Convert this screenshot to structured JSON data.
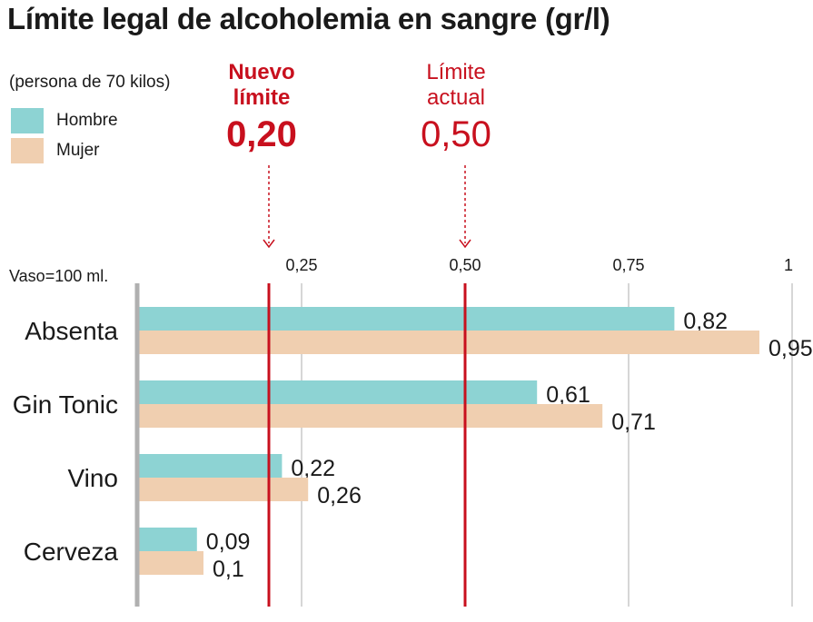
{
  "title": "Límite legal de alcoholemia en sangre (gr/l)",
  "subtitle": "(persona de 70 kilos)",
  "legend": [
    {
      "label": "Hombre",
      "color": "#8dd3d3"
    },
    {
      "label": "Mujer",
      "color": "#f0cfb0"
    }
  ],
  "markers": [
    {
      "label": "Nuevo\nlímite",
      "value_label": "0,20",
      "value": 0.2,
      "bold": true,
      "color": "#c8101e"
    },
    {
      "label": "Límite\nactual",
      "value_label": "0,50",
      "value": 0.5,
      "bold": false,
      "color": "#c8101e"
    }
  ],
  "axis_note": "Vaso=100 ml.",
  "chart_data": {
    "type": "bar",
    "orientation": "horizontal",
    "title": "Límite legal de alcoholemia en sangre (gr/l)",
    "categories": [
      "Absenta",
      "Gin Tonic",
      "Vino",
      "Cerveza"
    ],
    "series": [
      {
        "name": "Hombre",
        "values": [
          0.82,
          0.61,
          0.22,
          0.09
        ],
        "labels": [
          "0,82",
          "0,61",
          "0,22",
          "0,09"
        ],
        "color": "#8dd3d3"
      },
      {
        "name": "Mujer",
        "values": [
          0.95,
          0.71,
          0.26,
          0.1
        ],
        "labels": [
          "0,95",
          "0,71",
          "0,26",
          "0,1"
        ],
        "color": "#f0cfb0"
      }
    ],
    "xlim": [
      0,
      1
    ],
    "xticks": [
      0.25,
      0.5,
      0.75,
      1
    ],
    "xtick_labels": [
      "0,25",
      "0,50",
      "0,75",
      "1"
    ],
    "grid": true,
    "legend_position": "top-left"
  }
}
